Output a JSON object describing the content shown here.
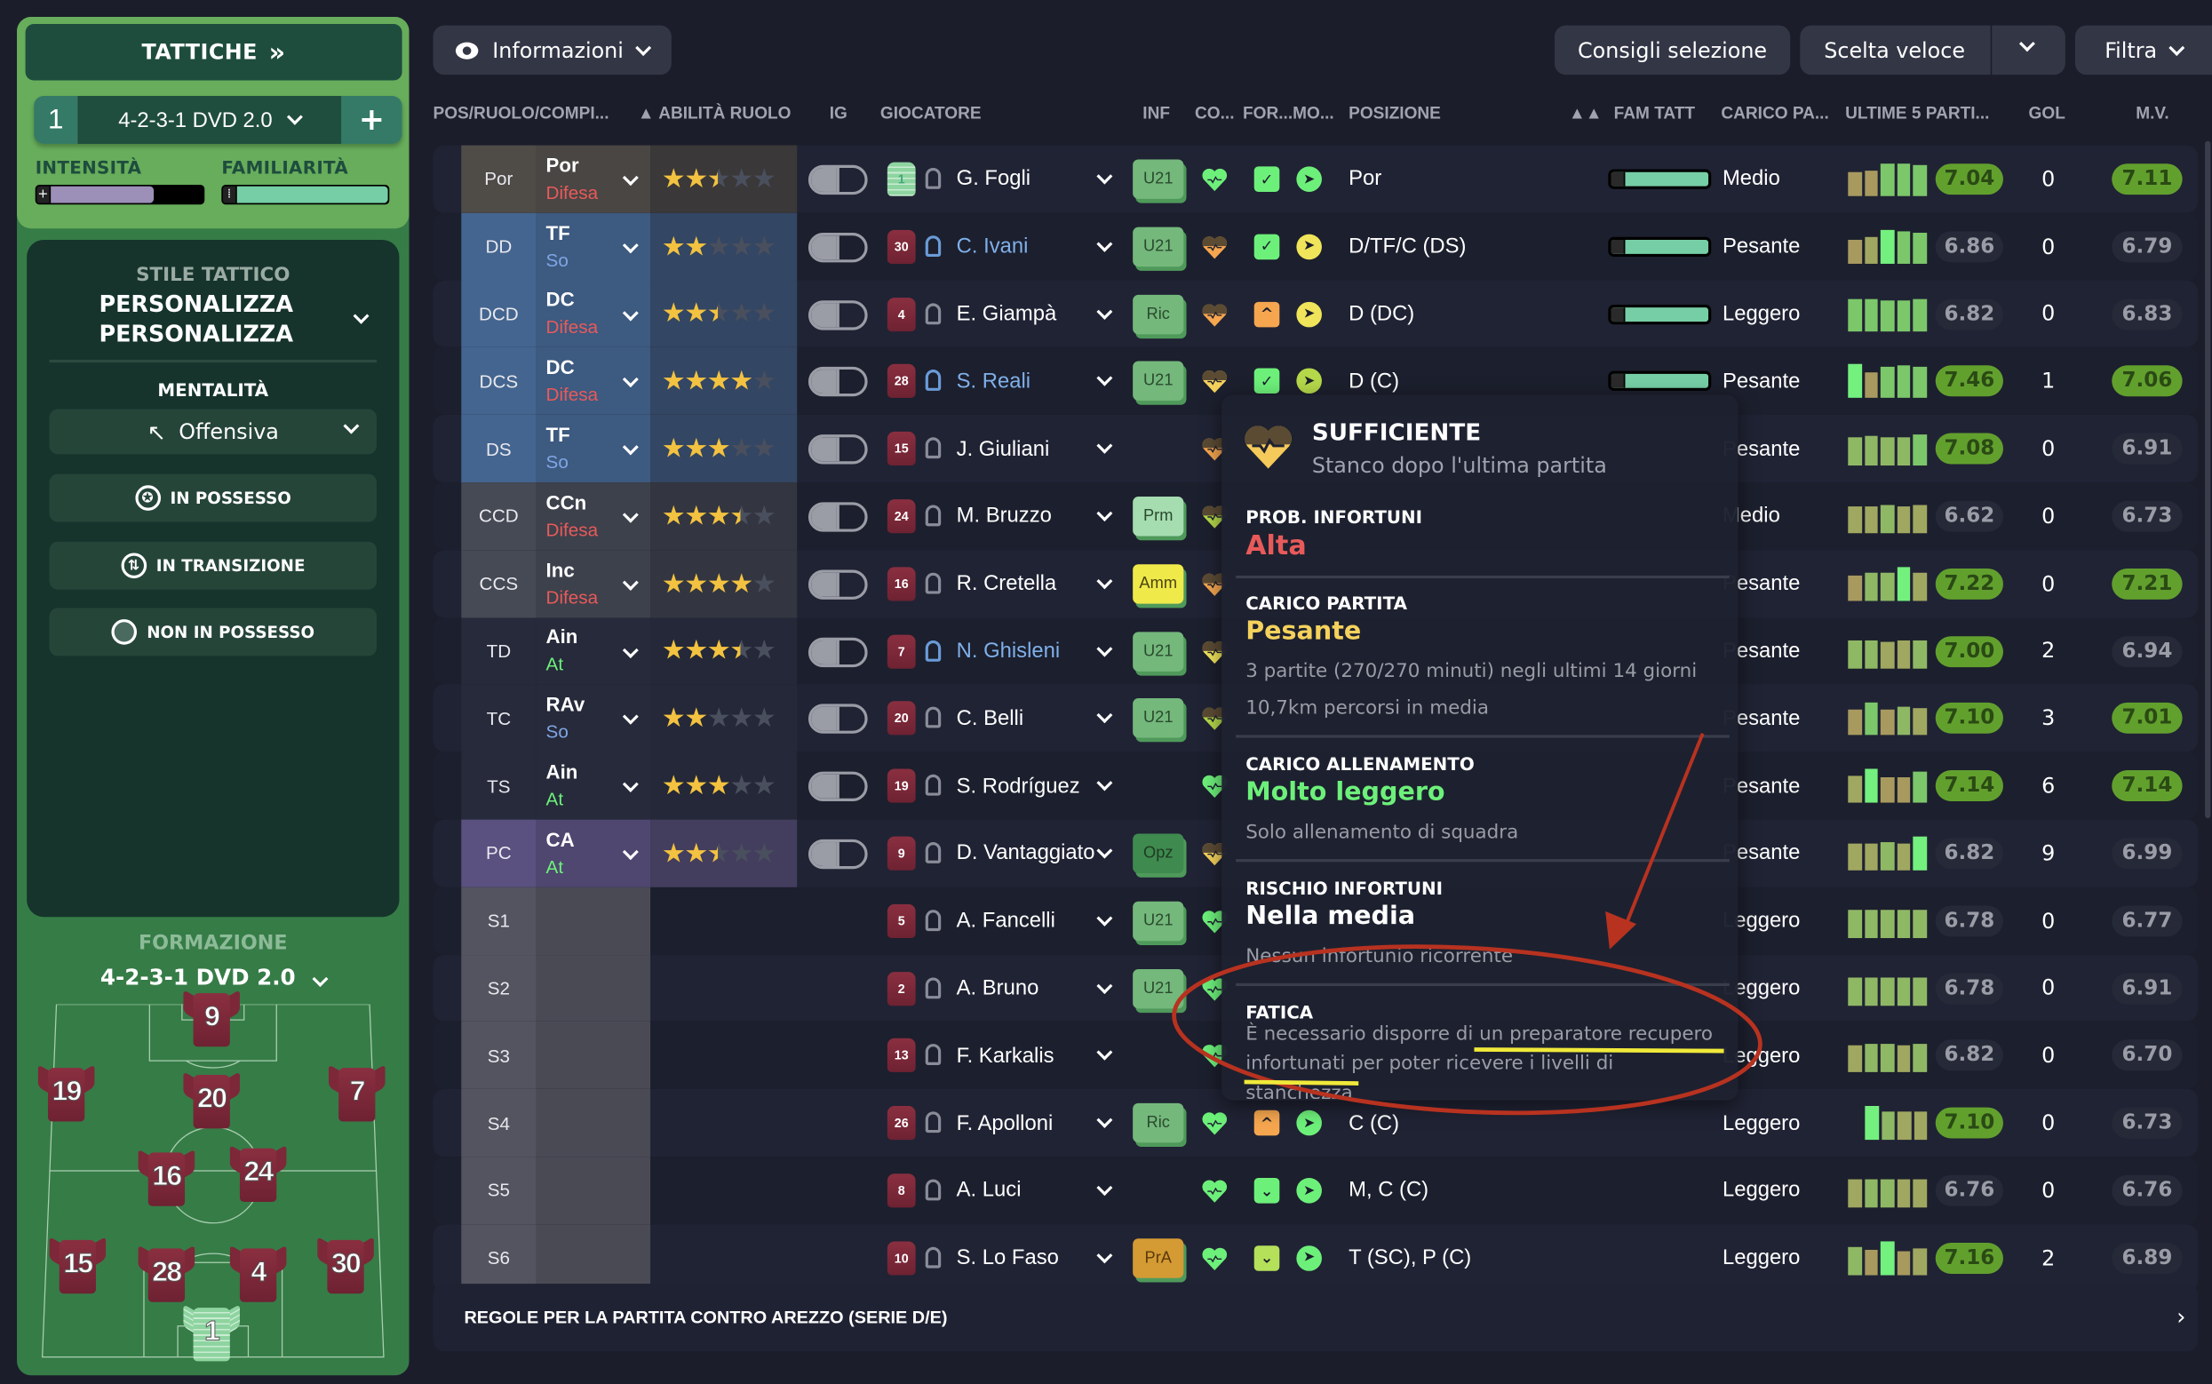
{
  "sidebar": {
    "tactics_label": "TATTICHE",
    "tactic_slot": "1",
    "tactic_name": "4-2-3-1 DVD 2.0",
    "add_label": "+",
    "intensity_label": "INTENSITÀ",
    "intensity_level": 0.68,
    "familiarity_label": "FAMILIARITÀ",
    "familiarity_level": 1.0,
    "style_label": "STILE TATTICO",
    "style_value_1": "PERSONALIZZA",
    "style_value_2": "PERSONALIZZA",
    "mentality_label": "MENTALITÀ",
    "mentality_value": "Offensiva",
    "phase_buttons": [
      "IN POSSESSO",
      "IN TRANSIZIONE",
      "NON IN POSSESSO"
    ],
    "formation_label": "FORMAZIONE",
    "formation_value": "4-2-3-1 DVD 2.0",
    "pitch_numbers": [
      "9",
      "19",
      "20",
      "7",
      "16",
      "24",
      "15",
      "28",
      "4",
      "30",
      "1"
    ]
  },
  "toolbar": {
    "info_label": "Informazioni",
    "advice_label": "Consigli selezione",
    "quick_pick_label": "Scelta veloce",
    "filter_label": "Filtra"
  },
  "columns": [
    "POS/RUOLO/COMPI...",
    "▲ ABILITÀ RUOLO",
    "IG",
    "GIOCATORE",
    "INF",
    "CO...",
    "FOR...MO...",
    "POSIZIONE",
    "▲▲",
    "FAM TATT",
    "CARICO PA...",
    "ULTIME 5 PARTI...",
    "GOL",
    "M.V."
  ],
  "colors": {
    "background": "#1b1d2b",
    "accent_green": "#62a02e",
    "star": "#f3c240",
    "duty_defend": "#e85a5a",
    "duty_support": "#7fa6e6",
    "duty_attack": "#6df07a"
  },
  "rows": [
    {
      "pos": "Por",
      "role": "Por",
      "duty": "Difesa",
      "stars": 2.5,
      "band": "gk",
      "shirt": "1",
      "name": "G. Fogli",
      "hl": false,
      "inf": "U21",
      "heart": "#6df07a",
      "tired": false,
      "for": "#6df07a",
      "mo": "#6df07a",
      "position": "Por",
      "fam": true,
      "load": "Medio",
      "last5": [
        0.7,
        0.75,
        0.95,
        0.95,
        0.9
      ],
      "rating": "7.04",
      "rhi": true,
      "goals": "0",
      "mv": "7.11",
      "mvhi": true
    },
    {
      "pos": "DD",
      "role": "TF",
      "duty": "So",
      "stars": 2,
      "band": "def",
      "shirt": "30",
      "name": "C. Ivani",
      "hl": true,
      "inf": "U21",
      "heart": "#f5a64f",
      "tired": true,
      "for": "#6df07a",
      "mo": "#f0e45a",
      "position": "D/TF/C (DS)",
      "fam": true,
      "load": "Pesante",
      "last5": [
        0.7,
        0.8,
        1.0,
        0.95,
        0.9
      ],
      "rating": "6.86",
      "rhi": false,
      "goals": "0",
      "mv": "6.79",
      "mvhi": false
    },
    {
      "pos": "DCD",
      "role": "DC",
      "duty": "Difesa",
      "stars": 2.5,
      "band": "def",
      "shirt": "4",
      "name": "E. Giampà",
      "hl": false,
      "inf": "Ric",
      "heart": "#f5a64f",
      "tired": true,
      "for": "#f5a64f",
      "mo": "#f0e45a",
      "position": "D (DC)",
      "fam": true,
      "load": "Leggero",
      "last5": [
        0.95,
        0.95,
        0.9,
        0.9,
        0.95
      ],
      "rating": "6.82",
      "rhi": false,
      "goals": "0",
      "mv": "6.83",
      "mvhi": false
    },
    {
      "pos": "DCS",
      "role": "DC",
      "duty": "Difesa",
      "stars": 4,
      "band": "def",
      "shirt": "28",
      "name": "S. Reali",
      "hl": true,
      "inf": "U21",
      "heart": "#f5d25c",
      "tired": true,
      "for": "#6df07a",
      "mo": "#b5d84a",
      "position": "D (C)",
      "fam": true,
      "load": "Pesante",
      "last5": [
        1.0,
        0.75,
        0.9,
        0.95,
        0.9
      ],
      "rating": "7.46",
      "rhi": true,
      "goals": "1",
      "mv": "7.06",
      "mvhi": true
    },
    {
      "pos": "DS",
      "role": "TF",
      "duty": "So",
      "stars": 3,
      "band": "def",
      "shirt": "15",
      "name": "J. Giuliani",
      "hl": false,
      "inf": "",
      "heart": "#f5a64f",
      "tired": true,
      "for": "",
      "mo": "",
      "position": "",
      "fam": false,
      "load": "Pesante",
      "last5": [
        0.85,
        0.88,
        0.85,
        0.85,
        0.9
      ],
      "rating": "7.08",
      "rhi": true,
      "goals": "0",
      "mv": "6.91",
      "mvhi": false
    },
    {
      "pos": "CCD",
      "role": "CCn",
      "duty": "Difesa",
      "stars": 3.5,
      "band": "mid",
      "shirt": "24",
      "name": "M. Bruzzo",
      "hl": false,
      "inf": "Prm",
      "heart": "#b5d84a",
      "tired": true,
      "for": "",
      "mo": "",
      "position": "",
      "fam": false,
      "load": "Medio",
      "last5": [
        0.8,
        0.8,
        0.85,
        0.8,
        0.82
      ],
      "rating": "6.62",
      "rhi": false,
      "goals": "0",
      "mv": "6.73",
      "mvhi": false
    },
    {
      "pos": "CCS",
      "role": "Inc",
      "duty": "Difesa",
      "stars": 4,
      "band": "mid",
      "shirt": "16",
      "name": "R. Cretella",
      "hl": false,
      "inf": "Amm",
      "heart": "#f5a64f",
      "tired": true,
      "for": "",
      "mo": "",
      "position": "",
      "fam": false,
      "load": "Pesante",
      "last5": [
        0.75,
        0.85,
        0.85,
        1.0,
        0.82
      ],
      "rating": "7.22",
      "rhi": true,
      "goals": "0",
      "mv": "7.21",
      "mvhi": true
    },
    {
      "pos": "TD",
      "role": "Ain",
      "duty": "At",
      "stars": 3.5,
      "band": "none",
      "shirt": "7",
      "name": "N. Ghisleni",
      "hl": true,
      "inf": "U21",
      "heart": "#f0e45a",
      "tired": true,
      "for": "",
      "mo": "",
      "position": "",
      "fam": false,
      "load": "Pesante",
      "last5": [
        0.85,
        0.85,
        0.8,
        0.82,
        0.85
      ],
      "rating": "7.00",
      "rhi": true,
      "goals": "2",
      "mv": "6.94",
      "mvhi": false
    },
    {
      "pos": "TC",
      "role": "RAv",
      "duty": "So",
      "stars": 2,
      "band": "none",
      "shirt": "20",
      "name": "C. Belli",
      "hl": false,
      "inf": "U21",
      "heart": "#b5d84a",
      "tired": true,
      "for": "",
      "mo": "",
      "position": "",
      "fam": false,
      "load": "Pesante",
      "last5": [
        0.75,
        0.95,
        0.75,
        0.85,
        0.8
      ],
      "rating": "7.10",
      "rhi": true,
      "goals": "3",
      "mv": "7.01",
      "mvhi": true
    },
    {
      "pos": "TS",
      "role": "Ain",
      "duty": "At",
      "stars": 3,
      "band": "none",
      "shirt": "19",
      "name": "S. Rodríguez",
      "hl": false,
      "inf": "",
      "heart": "#6df07a",
      "tired": false,
      "for": "",
      "mo": "",
      "position": "",
      "fam": false,
      "load": "Pesante",
      "last5": [
        0.8,
        1.0,
        0.75,
        0.75,
        0.9
      ],
      "rating": "7.14",
      "rhi": true,
      "goals": "6",
      "mv": "7.14",
      "mvhi": true
    },
    {
      "pos": "PC",
      "role": "CA",
      "duty": "At",
      "stars": 2.5,
      "band": "fwd",
      "shirt": "9",
      "name": "D. Vantaggiato",
      "hl": false,
      "inf": "Opz",
      "heart": "#f5d25c",
      "tired": true,
      "for": "",
      "mo": "",
      "position": "",
      "fam": false,
      "load": "Pesante",
      "last5": [
        0.8,
        0.8,
        0.85,
        0.8,
        1.0
      ],
      "rating": "6.82",
      "rhi": false,
      "goals": "9",
      "mv": "6.99",
      "mvhi": false
    },
    {
      "pos": "S1",
      "role": "",
      "duty": "",
      "stars": 0,
      "band": "sub",
      "shirt": "5",
      "name": "A. Fancelli",
      "hl": false,
      "inf": "U21",
      "heart": "#6df07a",
      "tired": false,
      "for": "",
      "mo": "",
      "position": "",
      "fam": false,
      "load": "Leggero",
      "last5": [
        0.85,
        0.85,
        0.85,
        0.85,
        0.85
      ],
      "rating": "6.78",
      "rhi": false,
      "goals": "0",
      "mv": "6.77",
      "mvhi": false
    },
    {
      "pos": "S2",
      "role": "",
      "duty": "",
      "stars": 0,
      "band": "sub",
      "shirt": "2",
      "name": "A. Bruno",
      "hl": false,
      "inf": "U21",
      "heart": "#6df07a",
      "tired": false,
      "for": "",
      "mo": "",
      "position": "",
      "fam": false,
      "load": "Leggero",
      "last5": [
        0.85,
        0.85,
        0.85,
        0.85,
        0.85
      ],
      "rating": "6.78",
      "rhi": false,
      "goals": "0",
      "mv": "6.91",
      "mvhi": false
    },
    {
      "pos": "S3",
      "role": "",
      "duty": "",
      "stars": 0,
      "band": "sub",
      "shirt": "13",
      "name": "F. Karkalis",
      "hl": false,
      "inf": "",
      "heart": "#6df07a",
      "tired": false,
      "for": "",
      "mo": "",
      "position": "",
      "fam": false,
      "load": "Leggero",
      "last5": [
        0.8,
        0.85,
        0.85,
        0.8,
        0.85
      ],
      "rating": "6.82",
      "rhi": false,
      "goals": "0",
      "mv": "6.70",
      "mvhi": false
    },
    {
      "pos": "S4",
      "role": "",
      "duty": "",
      "stars": 0,
      "band": "sub",
      "shirt": "26",
      "name": "F. Apolloni",
      "hl": false,
      "inf": "Ric",
      "heart": "#6df07a",
      "tired": false,
      "for": "#f5a64f",
      "mo": "#6df07a",
      "position": "C (C)",
      "fam": false,
      "load": "Leggero",
      "last5": [
        1.0,
        0.85,
        0.82,
        0.82
      ],
      "rating": "7.10",
      "rhi": true,
      "goals": "0",
      "mv": "6.73",
      "mvhi": false
    },
    {
      "pos": "S5",
      "role": "",
      "duty": "",
      "stars": 0,
      "band": "sub",
      "shirt": "8",
      "name": "A. Luci",
      "hl": false,
      "inf": "",
      "heart": "#6df07a",
      "tired": false,
      "for": "#6df07a",
      "mo": "#6df07a",
      "position": "M, C (C)",
      "fam": false,
      "load": "Leggero",
      "last5": [
        0.82,
        0.85,
        0.85,
        0.82,
        0.82
      ],
      "rating": "6.76",
      "rhi": false,
      "goals": "0",
      "mv": "6.76",
      "mvhi": false
    },
    {
      "pos": "S6",
      "role": "",
      "duty": "",
      "stars": 0,
      "band": "sub",
      "shirt": "10",
      "name": "S. Lo Faso",
      "hl": false,
      "inf": "PrA",
      "heart": "#6df07a",
      "tired": false,
      "for": "#b5e05a",
      "mo": "#6df07a",
      "position": "T (SC), P (C)",
      "fam": false,
      "load": "Leggero",
      "last5": [
        0.85,
        0.75,
        1.0,
        0.7,
        0.8
      ],
      "rating": "7.16",
      "rhi": true,
      "goals": "2",
      "mv": "6.89",
      "mvhi": false
    }
  ],
  "footer": {
    "rules_label": "REGOLE PER LA PARTITA CONTRO AREZZO (SERIE D/E)"
  },
  "tooltip": {
    "title": "SUFFICIENTE",
    "subtitle": "Stanco dopo l'ultima partita",
    "injury_prob_label": "PROB. INFORTUNI",
    "injury_prob_value": "Alta",
    "match_load_label": "CARICO PARTITA",
    "match_load_value": "Pesante",
    "match_load_line1": "3 partite (270/270 minuti) negli ultimi 14 giorni",
    "match_load_line2": "10,7km percorsi in media",
    "training_load_label": "CARICO ALLENAMENTO",
    "training_load_value": "Molto leggero",
    "training_load_line": "Solo allenamento di squadra",
    "injury_risk_label": "RISCHIO INFORTUNI",
    "injury_risk_value": "Nella media",
    "injury_risk_line": "Nessun infortunio ricorrente",
    "fatigue_label": "FATICA",
    "fatigue_text": "È necessario disporre di un preparatore recupero infortunati per poter ricevere i livelli di stanchezza"
  }
}
